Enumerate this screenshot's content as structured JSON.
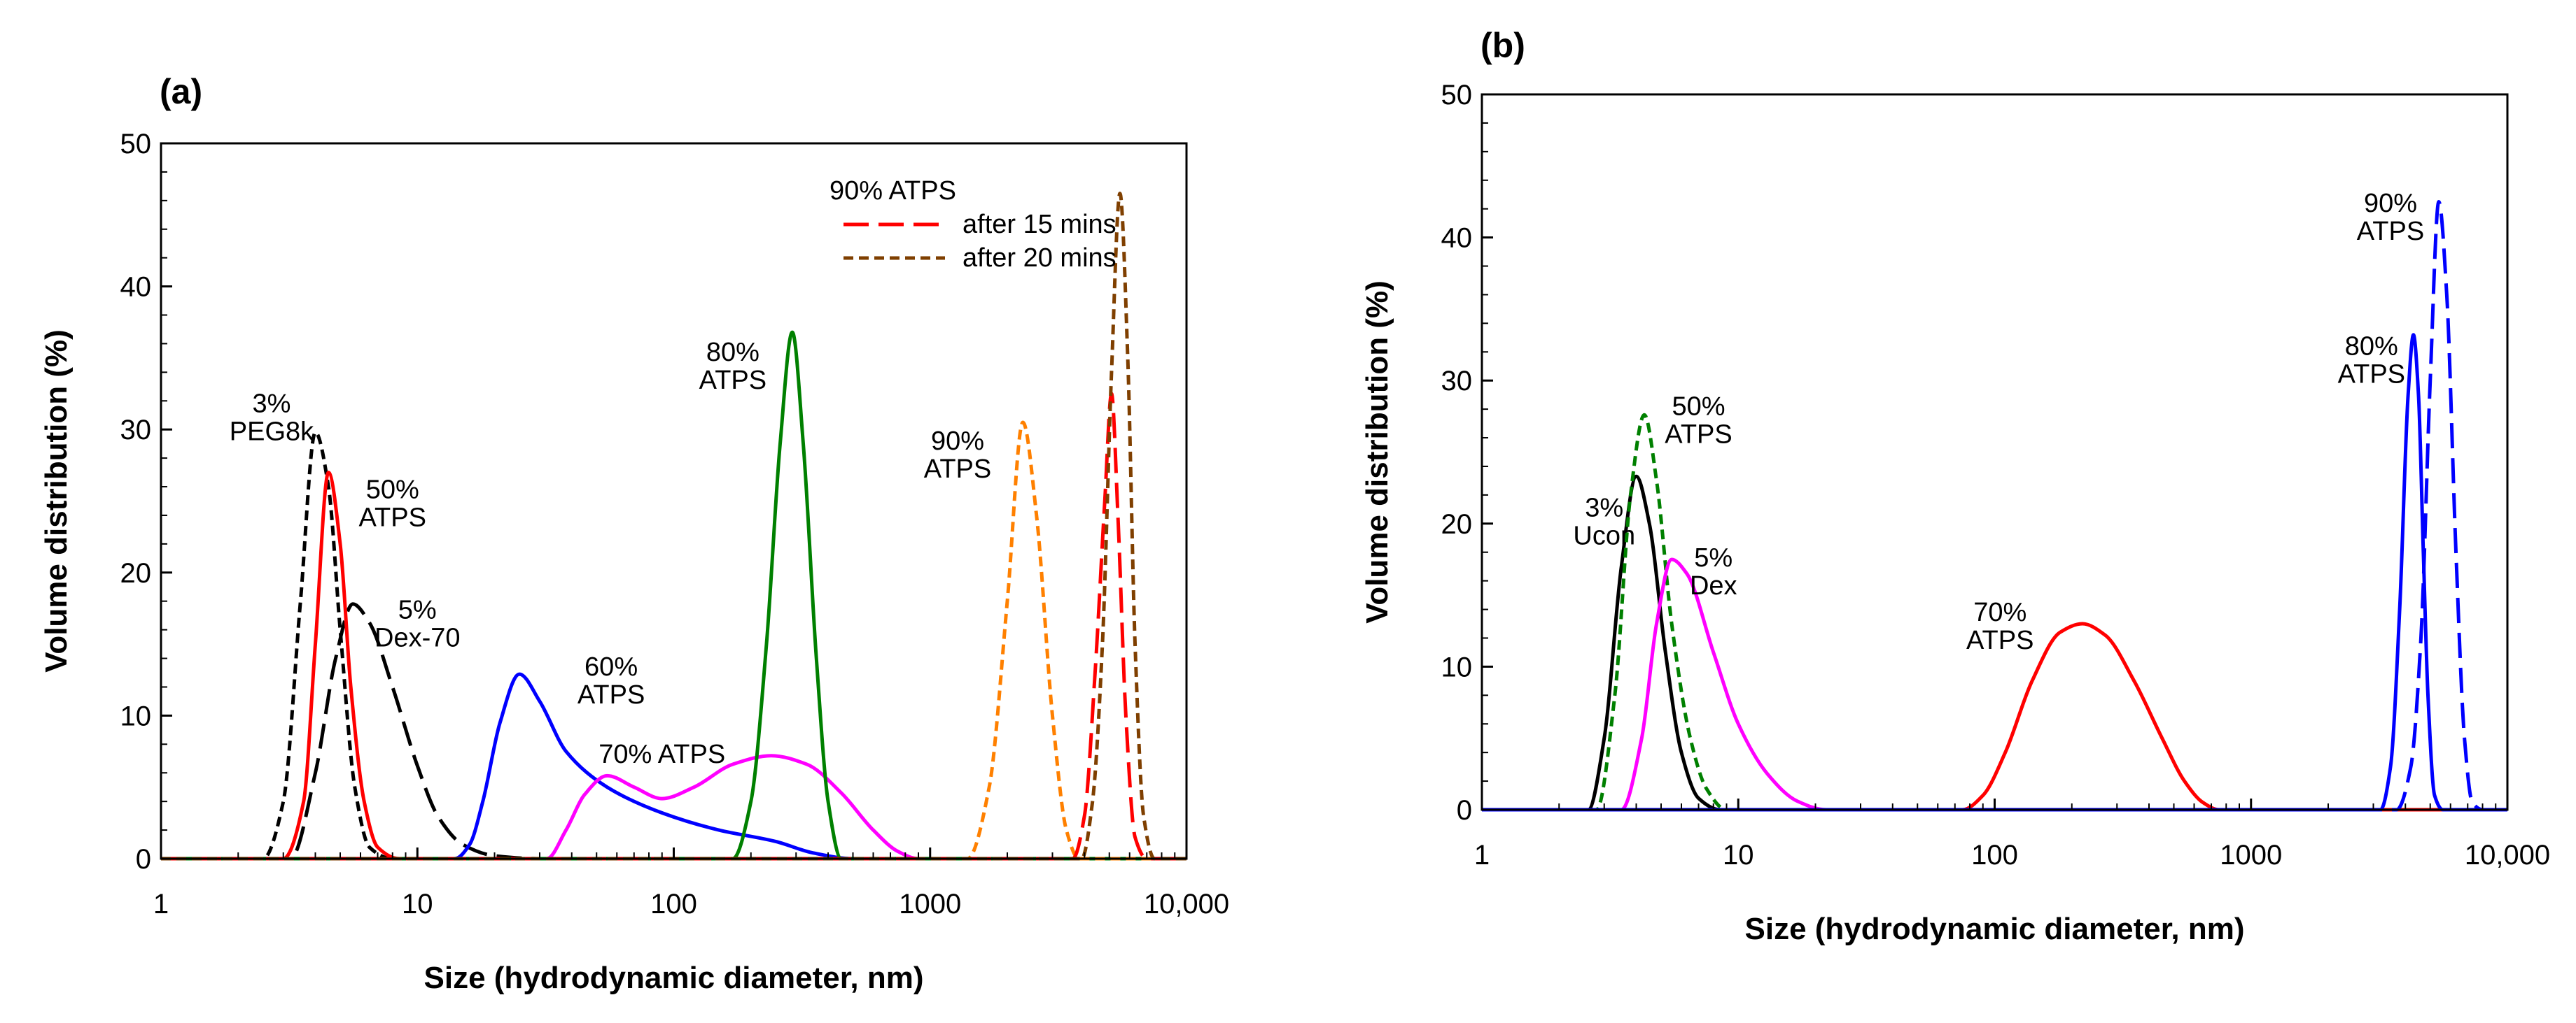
{
  "chart_data": [
    {
      "panel_label": "(a)",
      "type": "line",
      "xscale": "log",
      "xlabel": "Size (hydrodynamic diameter, nm)",
      "ylabel": "Volume distribution (%)",
      "xlim": [
        1,
        10000
      ],
      "ylim": [
        0,
        50
      ],
      "xticks": [
        {
          "value": 1,
          "label": "1"
        },
        {
          "value": 10,
          "label": "10"
        },
        {
          "value": 100,
          "label": "100"
        },
        {
          "value": 1000,
          "label": "1000"
        },
        {
          "value": 10000,
          "label": "10,000"
        }
      ],
      "yticks": [
        {
          "value": 0,
          "label": "0"
        },
        {
          "value": 10,
          "label": "10"
        },
        {
          "value": 20,
          "label": "20"
        },
        {
          "value": 30,
          "label": "30"
        },
        {
          "value": 40,
          "label": "40"
        },
        {
          "value": 50,
          "label": "50"
        }
      ],
      "legend": {
        "title": "90% ATPS",
        "position": "top-right",
        "entries": [
          {
            "label": "after 15 mins",
            "color": "#ff0000",
            "dash": "long-dash"
          },
          {
            "label": "after 20 mins",
            "color": "#7f3f00",
            "dash": "short-dash"
          }
        ]
      },
      "series": [
        {
          "name": "3% PEG8k",
          "color": "#000000",
          "dash": "short-dash",
          "points": [
            [
              1,
              0
            ],
            [
              2.5,
              0
            ],
            [
              3.0,
              4
            ],
            [
              3.5,
              18
            ],
            [
              4.0,
              29.8
            ],
            [
              4.5,
              26
            ],
            [
              5.0,
              16
            ],
            [
              5.7,
              5
            ],
            [
              6.5,
              0.8
            ],
            [
              8,
              0
            ],
            [
              10000,
              0
            ]
          ]
        },
        {
          "name": "5% Dex-70",
          "color": "#000000",
          "dash": "long-dash",
          "points": [
            [
              1,
              0
            ],
            [
              3.2,
              0
            ],
            [
              4.0,
              6
            ],
            [
              4.8,
              14
            ],
            [
              5.6,
              17.8
            ],
            [
              6.5,
              16.5
            ],
            [
              8,
              12
            ],
            [
              10,
              6.5
            ],
            [
              12,
              3
            ],
            [
              15,
              1
            ],
            [
              20,
              0.2
            ],
            [
              30,
              0
            ],
            [
              10000,
              0
            ]
          ]
        },
        {
          "name": "50% ATPS",
          "color": "#ff0000",
          "dash": "solid",
          "points": [
            [
              1,
              0
            ],
            [
              3.0,
              0
            ],
            [
              3.6,
              4
            ],
            [
              4.0,
              15
            ],
            [
              4.5,
              27
            ],
            [
              5.0,
              22
            ],
            [
              5.5,
              12
            ],
            [
              6.2,
              4
            ],
            [
              7,
              0.8
            ],
            [
              8.5,
              0
            ],
            [
              10000,
              0
            ]
          ]
        },
        {
          "name": "60% ATPS",
          "color": "#0000ff",
          "dash": "solid",
          "points": [
            [
              1,
              0
            ],
            [
              14,
              0
            ],
            [
              16,
              1
            ],
            [
              18,
              4
            ],
            [
              21,
              9.5
            ],
            [
              25,
              12.9
            ],
            [
              30,
              11
            ],
            [
              38,
              7.5
            ],
            [
              55,
              5
            ],
            [
              90,
              3.2
            ],
            [
              150,
              2
            ],
            [
              250,
              1.2
            ],
            [
              350,
              0.4
            ],
            [
              500,
              0
            ],
            [
              10000,
              0
            ]
          ]
        },
        {
          "name": "70% ATPS",
          "color": "#ff00ff",
          "dash": "solid",
          "points": [
            [
              1,
              0
            ],
            [
              32,
              0
            ],
            [
              38,
              2
            ],
            [
              45,
              4.5
            ],
            [
              55,
              5.8
            ],
            [
              70,
              5.0
            ],
            [
              90,
              4.2
            ],
            [
              120,
              5.0
            ],
            [
              170,
              6.6
            ],
            [
              240,
              7.2
            ],
            [
              330,
              6.6
            ],
            [
              450,
              4.6
            ],
            [
              600,
              2
            ],
            [
              750,
              0.5
            ],
            [
              900,
              0
            ],
            [
              10000,
              0
            ]
          ]
        },
        {
          "name": "80% ATPS",
          "color": "#008000",
          "dash": "solid",
          "points": [
            [
              1,
              0
            ],
            [
              170,
              0
            ],
            [
              200,
              4
            ],
            [
              230,
              15
            ],
            [
              260,
              29
            ],
            [
              290,
              36.8
            ],
            [
              320,
              29
            ],
            [
              360,
              14
            ],
            [
              400,
              4
            ],
            [
              450,
              0
            ],
            [
              10000,
              0
            ]
          ]
        },
        {
          "name": "90% ATPS",
          "color": "#ff8000",
          "dash": "short-dash",
          "points": [
            [
              1,
              0
            ],
            [
              1400,
              0
            ],
            [
              1700,
              5
            ],
            [
              2000,
              18
            ],
            [
              2300,
              30.5
            ],
            [
              2600,
              24
            ],
            [
              3000,
              10
            ],
            [
              3400,
              2
            ],
            [
              3800,
              0
            ],
            [
              10000,
              0
            ]
          ]
        },
        {
          "name": "90% ATPS after 15 mins",
          "color": "#ff0000",
          "dash": "long-dash",
          "points": [
            [
              1,
              0
            ],
            [
              3600,
              0
            ],
            [
              4000,
              3
            ],
            [
              4400,
              13
            ],
            [
              4800,
              25
            ],
            [
              5100,
              32.5
            ],
            [
              5400,
              24
            ],
            [
              5800,
              10
            ],
            [
              6300,
              1.5
            ],
            [
              7000,
              0
            ],
            [
              10000,
              0
            ]
          ]
        },
        {
          "name": "90% ATPS after 20 mins",
          "color": "#7f3f00",
          "dash": "short-dash",
          "points": [
            [
              1,
              0
            ],
            [
              3900,
              0
            ],
            [
              4300,
              4
            ],
            [
              4700,
              15
            ],
            [
              5100,
              34
            ],
            [
              5500,
              46.5
            ],
            [
              5900,
              35
            ],
            [
              6300,
              15
            ],
            [
              6800,
              3
            ],
            [
              7500,
              0
            ],
            [
              10000,
              0
            ]
          ]
        }
      ],
      "annotations": [
        {
          "lines": [
            "3%",
            "PEG8k"
          ],
          "x": 2.7,
          "y": 31.2
        },
        {
          "lines": [
            "50%",
            "ATPS"
          ],
          "x": 8.0,
          "y": 25.2
        },
        {
          "lines": [
            "5%",
            "Dex-70"
          ],
          "x": 10.0,
          "y": 16.8
        },
        {
          "lines": [
            "60%",
            "ATPS"
          ],
          "x": 57,
          "y": 12.8
        },
        {
          "lines": [
            "70% ATPS"
          ],
          "x": 90,
          "y": 6.7
        },
        {
          "lines": [
            "80%",
            "ATPS"
          ],
          "x": 170,
          "y": 34.8
        },
        {
          "lines": [
            "90%",
            "ATPS"
          ],
          "x": 1280,
          "y": 28.6
        }
      ]
    },
    {
      "panel_label": "(b)",
      "type": "line",
      "xscale": "log",
      "xlabel": "Size (hydrodynamic diameter, nm)",
      "ylabel": "Volume distribution (%)",
      "xlim": [
        1,
        10000
      ],
      "ylim": [
        0,
        50
      ],
      "xticks": [
        {
          "value": 1,
          "label": "1"
        },
        {
          "value": 10,
          "label": "10"
        },
        {
          "value": 100,
          "label": "100"
        },
        {
          "value": 1000,
          "label": "1000"
        },
        {
          "value": 10000,
          "label": "10,000"
        }
      ],
      "yticks": [
        {
          "value": 0,
          "label": "0"
        },
        {
          "value": 10,
          "label": "10"
        },
        {
          "value": 20,
          "label": "20"
        },
        {
          "value": 30,
          "label": "30"
        },
        {
          "value": 40,
          "label": "40"
        },
        {
          "value": 50,
          "label": "50"
        }
      ],
      "series": [
        {
          "name": "3% Ucon",
          "color": "#000000",
          "dash": "solid",
          "points": [
            [
              1,
              0
            ],
            [
              2.6,
              0
            ],
            [
              3.0,
              5
            ],
            [
              3.5,
              17
            ],
            [
              4.0,
              23.3
            ],
            [
              4.5,
              20
            ],
            [
              5.2,
              11
            ],
            [
              6.0,
              4
            ],
            [
              7,
              0.8
            ],
            [
              8.5,
              0
            ],
            [
              10000,
              0
            ]
          ]
        },
        {
          "name": "50% ATPS",
          "color": "#008000",
          "dash": "short-dash",
          "points": [
            [
              1,
              0
            ],
            [
              2.8,
              0
            ],
            [
              3.3,
              8
            ],
            [
              3.8,
              22
            ],
            [
              4.3,
              27.6
            ],
            [
              4.8,
              23
            ],
            [
              5.5,
              13
            ],
            [
              6.5,
              5
            ],
            [
              7.5,
              1.5
            ],
            [
              9,
              0
            ],
            [
              10000,
              0
            ]
          ]
        },
        {
          "name": "5% Dex",
          "color": "#ff00ff",
          "dash": "solid",
          "points": [
            [
              1,
              0
            ],
            [
              3.5,
              0
            ],
            [
              4.2,
              5
            ],
            [
              4.8,
              13
            ],
            [
              5.5,
              17.5
            ],
            [
              6.3,
              16.5
            ],
            [
              8,
              11
            ],
            [
              10,
              6
            ],
            [
              13,
              2.5
            ],
            [
              17,
              0.6
            ],
            [
              22,
              0
            ],
            [
              10000,
              0
            ]
          ]
        },
        {
          "name": "70% ATPS",
          "color": "#ff0000",
          "dash": "solid",
          "points": [
            [
              1,
              0
            ],
            [
              75,
              0
            ],
            [
              90,
              1
            ],
            [
              110,
              4
            ],
            [
              140,
              9
            ],
            [
              180,
              12.4
            ],
            [
              220,
              13
            ],
            [
              270,
              12.2
            ],
            [
              350,
              9
            ],
            [
              450,
              5
            ],
            [
              550,
              2
            ],
            [
              650,
              0.5
            ],
            [
              750,
              0
            ],
            [
              10000,
              0
            ]
          ]
        },
        {
          "name": "80% ATPS",
          "color": "#0000ff",
          "dash": "solid",
          "points": [
            [
              1,
              0
            ],
            [
              3200,
              0
            ],
            [
              3500,
              3
            ],
            [
              3800,
              14
            ],
            [
              4100,
              29
            ],
            [
              4300,
              33.2
            ],
            [
              4500,
              29
            ],
            [
              4700,
              18
            ],
            [
              4900,
              8
            ],
            [
              5200,
              1
            ],
            [
              5600,
              0
            ],
            [
              10000,
              0
            ]
          ]
        },
        {
          "name": "90% ATPS",
          "color": "#0000ff",
          "dash": "long-dash",
          "points": [
            [
              1,
              0
            ],
            [
              3700,
              0
            ],
            [
              4200,
              3
            ],
            [
              4600,
              12
            ],
            [
              5000,
              30
            ],
            [
              5400,
              42.5
            ],
            [
              5800,
              36
            ],
            [
              6300,
              18
            ],
            [
              6800,
              5
            ],
            [
              7300,
              0.5
            ],
            [
              8000,
              0
            ],
            [
              10000,
              0
            ]
          ]
        }
      ],
      "annotations": [
        {
          "lines": [
            "50%",
            "ATPS"
          ],
          "x": 7.0,
          "y": 27.6
        },
        {
          "lines": [
            "3%",
            "Ucon"
          ],
          "x": 3.0,
          "y": 20.5
        },
        {
          "lines": [
            "5%",
            "Dex"
          ],
          "x": 8.0,
          "y": 17.0
        },
        {
          "lines": [
            "70%",
            "ATPS"
          ],
          "x": 105,
          "y": 13.2
        },
        {
          "lines": [
            "80%",
            "ATPS"
          ],
          "x": 2950,
          "y": 31.8
        },
        {
          "lines": [
            "90%",
            "ATPS"
          ],
          "x": 3500,
          "y": 41.8
        }
      ]
    }
  ]
}
